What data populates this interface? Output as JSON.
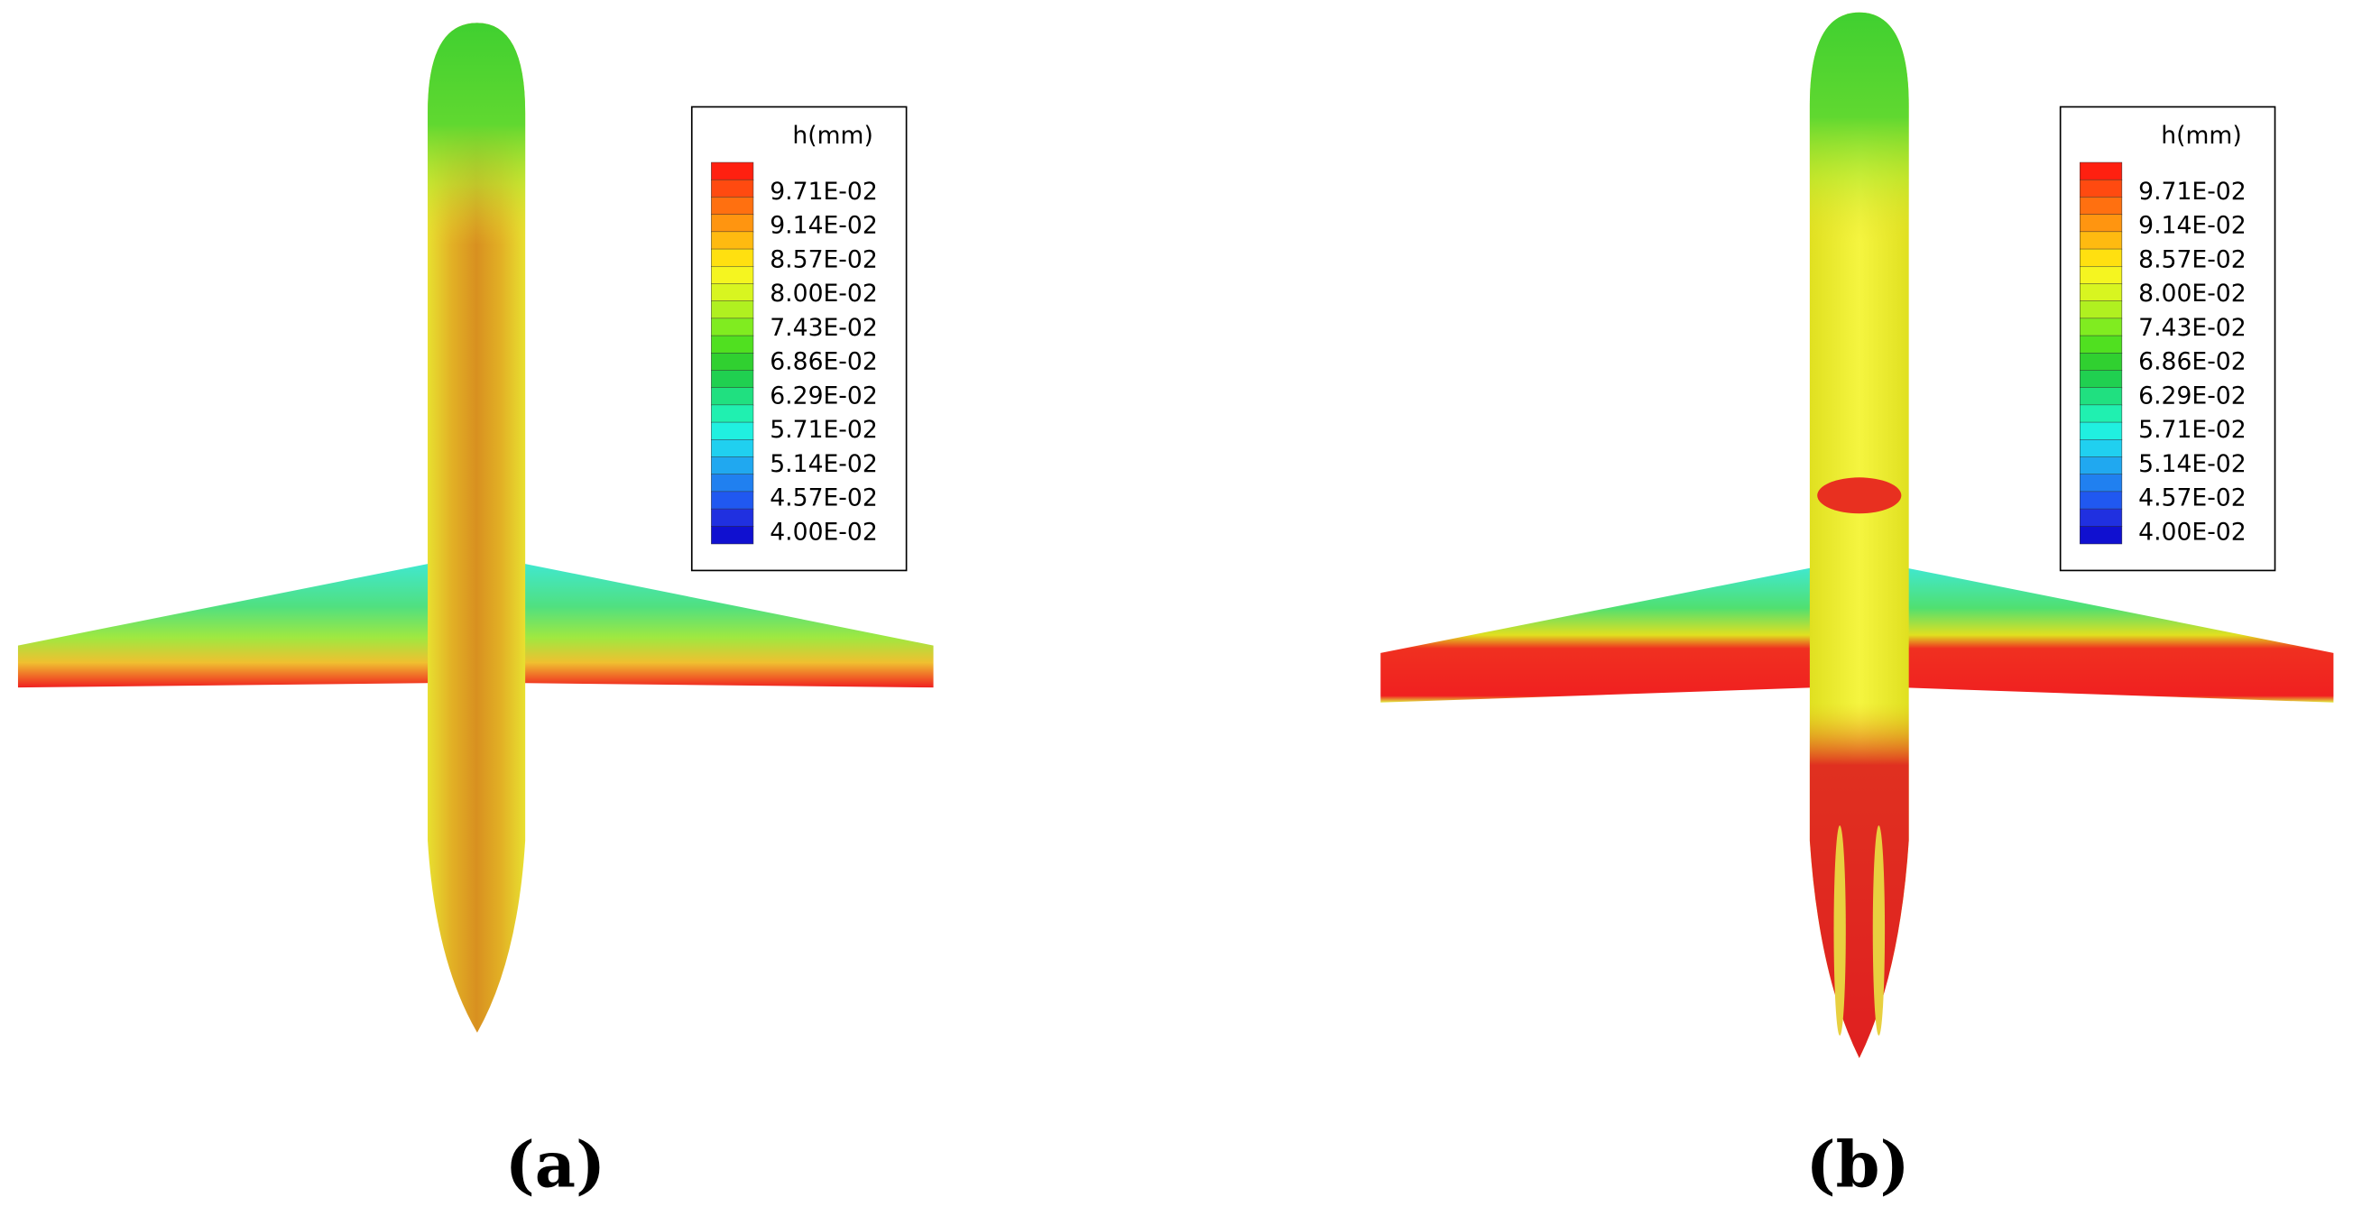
{
  "panels": [
    {
      "label": "(a)",
      "legend": {
        "title": "h(mm)",
        "levels": [
          "9.71E-02",
          "9.14E-02",
          "8.57E-02",
          "8.00E-02",
          "7.43E-02",
          "6.86E-02",
          "6.29E-02",
          "5.71E-02",
          "5.14E-02",
          "4.57E-02",
          "4.00E-02"
        ]
      }
    },
    {
      "label": "(b)",
      "legend": {
        "title": "h(mm)",
        "levels": [
          "9.71E-02",
          "9.14E-02",
          "8.57E-02",
          "8.00E-02",
          "7.43E-02",
          "6.86E-02",
          "6.29E-02",
          "5.71E-02",
          "5.14E-02",
          "4.57E-02",
          "4.00E-02"
        ]
      }
    }
  ],
  "colorbar": [
    "#ff2010",
    "#ff4a10",
    "#ff7010",
    "#ff9510",
    "#ffba10",
    "#ffe010",
    "#f5f520",
    "#d8f520",
    "#b0f020",
    "#80ec20",
    "#50e020",
    "#30d030",
    "#20d050",
    "#20e080",
    "#20f0b0",
    "#20f0e0",
    "#20d0f0",
    "#20a8f0",
    "#2080f0",
    "#2058f0",
    "#2030e0",
    "#1010d0"
  ]
}
